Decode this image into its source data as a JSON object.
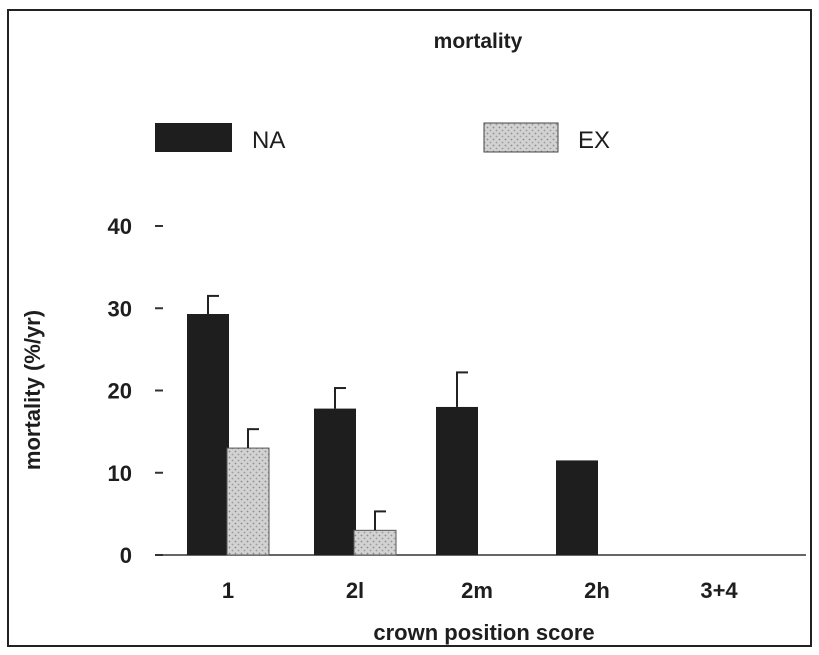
{
  "chart_data": {
    "type": "bar",
    "title": "mortality",
    "xlabel": "crown position score",
    "ylabel": "mortality (%/yr)",
    "categories": [
      "1",
      "2l",
      "2m",
      "2h",
      "3+4"
    ],
    "ylim": [
      0,
      40
    ],
    "yticks": [
      "0",
      "10",
      "20",
      "30",
      "40"
    ],
    "series": [
      {
        "name": "NA",
        "color": "#1e1e1e",
        "pattern": "solid",
        "values": [
          29.3,
          17.8,
          18.0,
          11.5,
          null
        ],
        "errors": [
          2.2,
          2.5,
          4.2,
          null,
          null
        ]
      },
      {
        "name": "EX",
        "color": "#c8c8c8",
        "pattern": "stippled",
        "values": [
          13.0,
          3.0,
          null,
          null,
          null
        ],
        "errors": [
          2.3,
          2.3,
          null,
          null,
          null
        ]
      }
    ],
    "legend_position": "top",
    "grid": false
  }
}
